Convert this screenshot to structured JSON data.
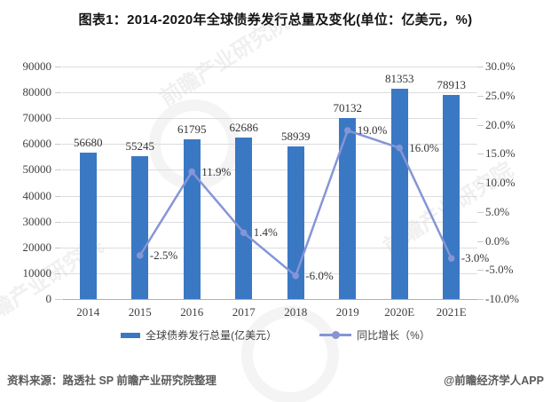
{
  "title": "图表1：2014-2020年全球债券发行总量及变化(单位：亿美元，%)",
  "chart_data": {
    "type": "bar+line",
    "categories": [
      "2014",
      "2015",
      "2016",
      "2017",
      "2018",
      "2019",
      "2020E",
      "2021E"
    ],
    "series": [
      {
        "name": "全球债券发行总量(亿美元）",
        "type": "bar",
        "axis": "left",
        "color": "#3a78c4",
        "values": [
          56680,
          55245,
          61795,
          62686,
          58939,
          70132,
          81353,
          78913
        ],
        "labels": [
          "56680",
          "55245",
          "61795",
          "62686",
          "58939",
          "70132",
          "81353",
          "78913"
        ]
      },
      {
        "name": "同比增长（%）",
        "type": "line",
        "axis": "right",
        "color": "#8595d6",
        "values": [
          null,
          -2.5,
          11.9,
          1.4,
          -6.0,
          19.0,
          16.0,
          -3.0
        ],
        "labels": [
          null,
          "-2.5%",
          "11.9%",
          "1.4%",
          "-6.0%",
          "19.0%",
          "16.0%",
          "-3.0%"
        ]
      }
    ],
    "left_axis": {
      "min": 0,
      "max": 90000,
      "step": 10000,
      "tick_labels": [
        "0",
        "10000",
        "20000",
        "30000",
        "40000",
        "50000",
        "60000",
        "70000",
        "80000",
        "90000"
      ]
    },
    "right_axis": {
      "min": -10,
      "max": 30,
      "step": 5,
      "tick_labels": [
        "-10.0%",
        "-5.0%",
        "0.0%",
        "5.0%",
        "10.0%",
        "15.0%",
        "20.0%",
        "25.0%",
        "30.0%"
      ]
    },
    "grid": "horizontal",
    "legend_position": "bottom"
  },
  "legend": {
    "bar_label": "全球债券发行总量(亿美元）",
    "line_label": "同比增长（%）"
  },
  "footer": {
    "source": "资料来源：路透社 SP 前瞻产业研究院整理",
    "credit": "@前瞻经济学人APP"
  },
  "watermark": {
    "text": "前瞻产业研究院"
  },
  "colors": {
    "bar": "#3a78c4",
    "line": "#8595d6",
    "grid": "#dcdcdc",
    "axis_text": "#3f3f3f",
    "title_text": "#141414",
    "footer_text": "#5a5a5a"
  }
}
